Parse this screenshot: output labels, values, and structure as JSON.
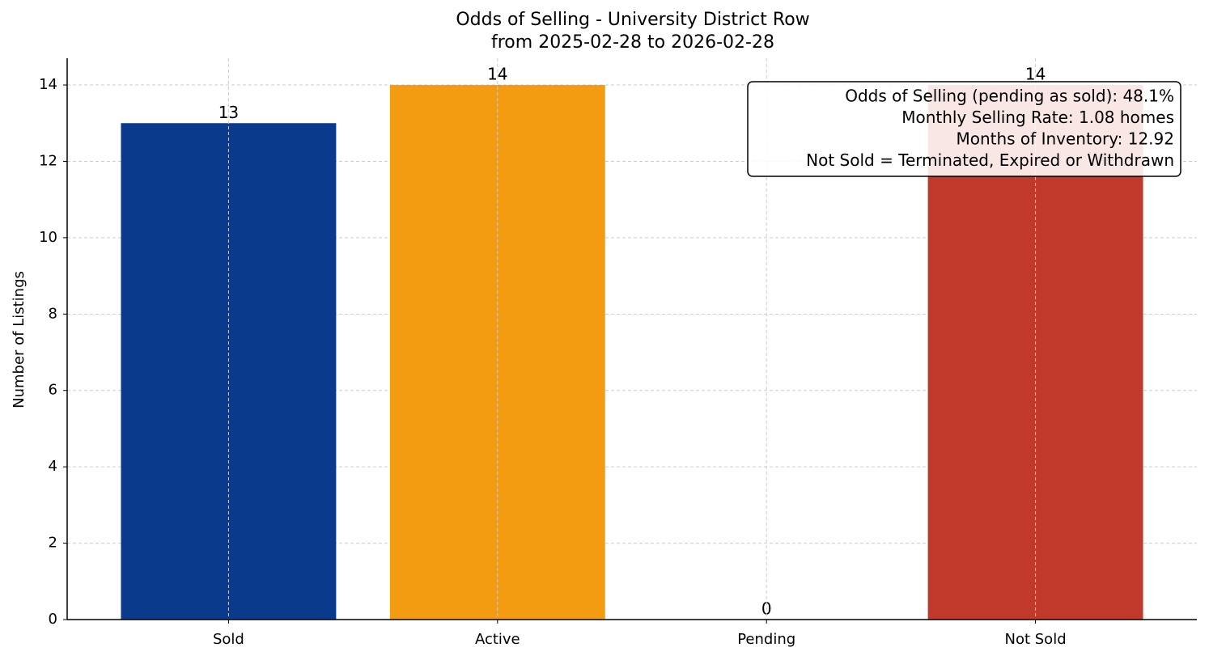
{
  "chart_data": {
    "type": "bar",
    "title": "Odds of Selling - University District Row",
    "subtitle": "from 2025-02-28 to 2026-02-28",
    "y_label": "Number of Listings",
    "categories": [
      "Sold",
      "Active",
      "Pending",
      "Not Sold"
    ],
    "values": [
      13,
      14,
      0,
      14
    ],
    "colors": [
      "#0a3a8c",
      "#f39c12",
      "#27ae60",
      "#c0392b"
    ],
    "ylim": [
      0,
      14.7
    ],
    "yticks": [
      0,
      2,
      4,
      6,
      8,
      10,
      12,
      14
    ],
    "grid": true,
    "annotation": [
      "Odds of Selling (pending as sold): 48.1%",
      "Monthly Selling Rate: 1.08 homes",
      "Months of Inventory: 12.92",
      "Not Sold = Terminated, Expired or Withdrawn"
    ]
  }
}
